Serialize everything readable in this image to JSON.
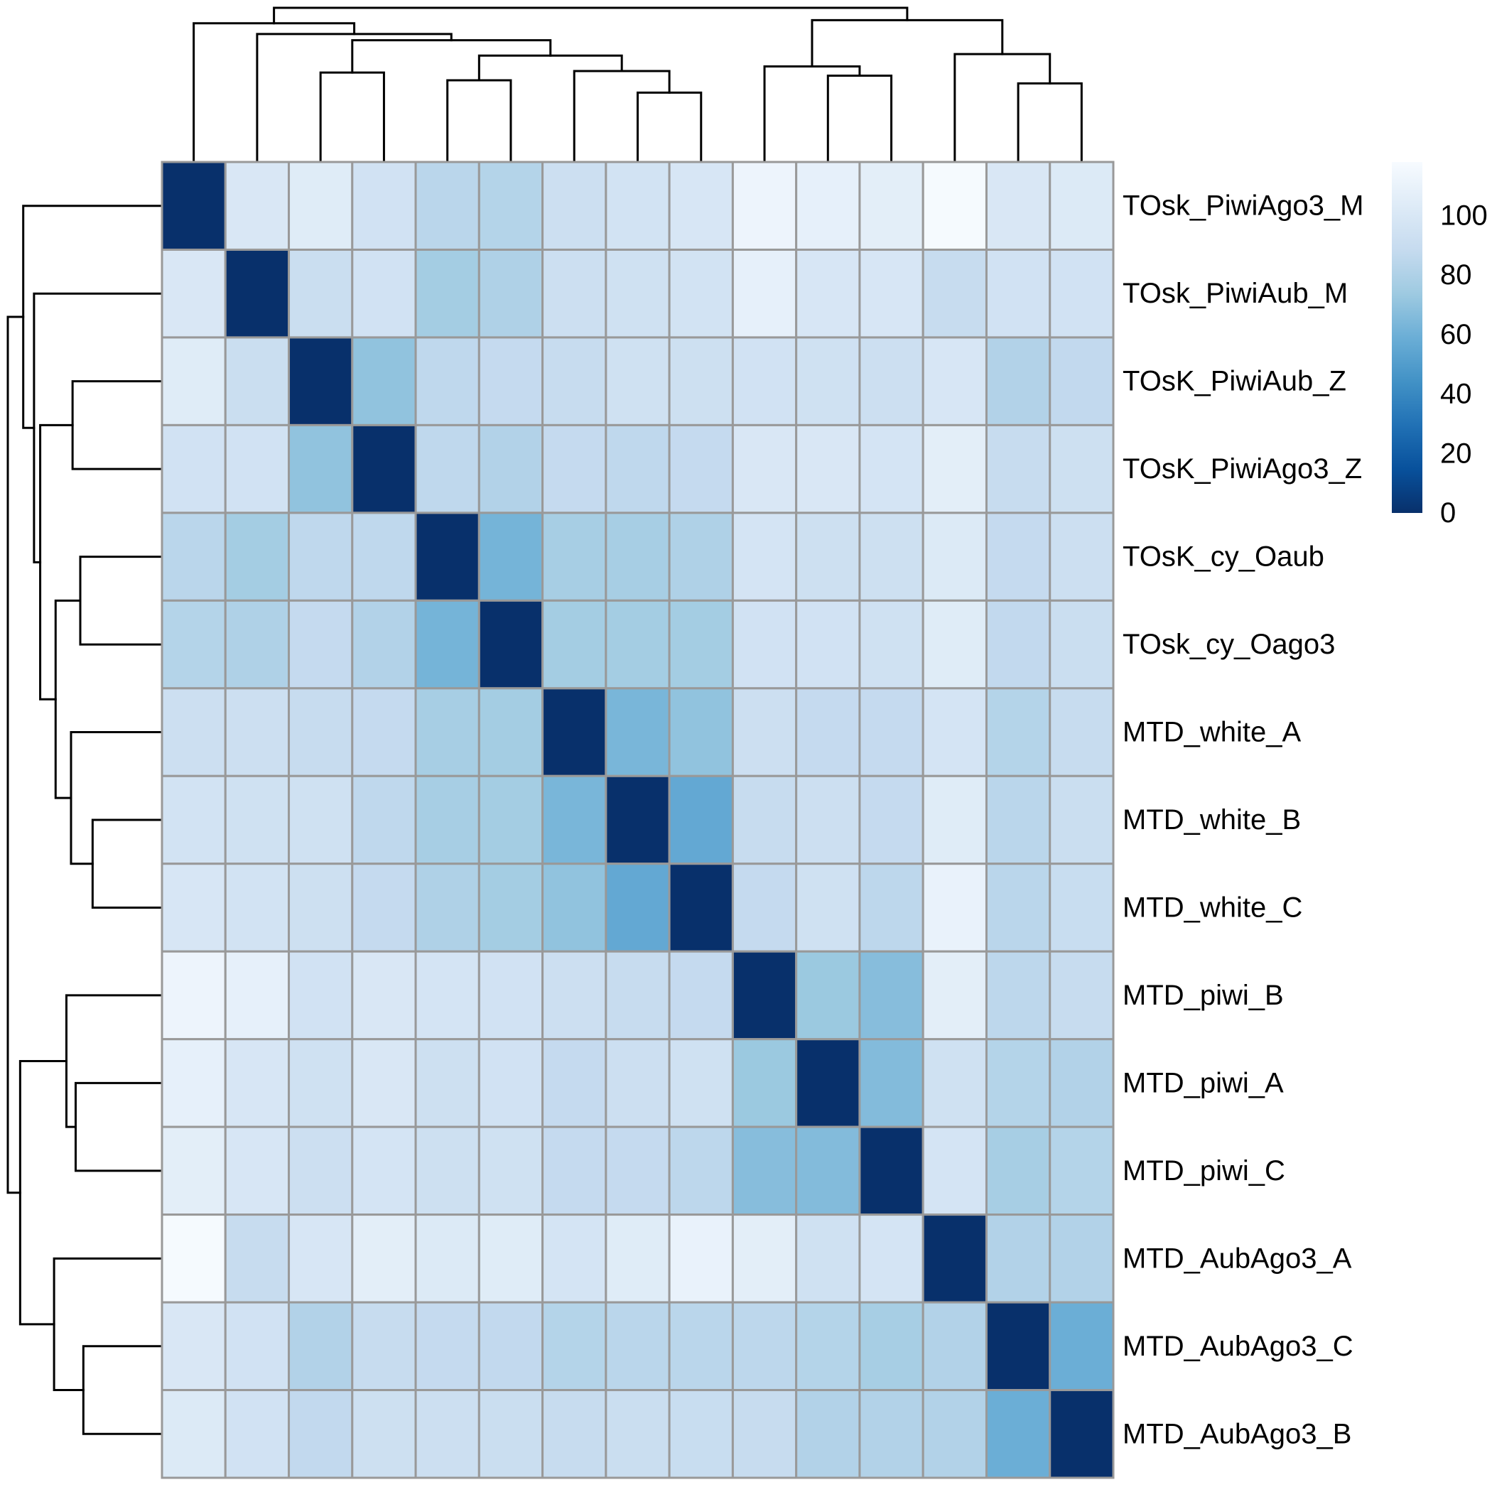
{
  "chart_data": {
    "type": "heatmap",
    "title": "",
    "labels": [
      "TOsk_PiwiAgo3_M",
      "TOsk_PiwiAub_M",
      "TOsK_PiwiAub_Z",
      "TOsK_PiwiAgo3_Z",
      "TOsK_cy_Oaub",
      "TOsk_cy_Oago3",
      "MTD_white_A",
      "MTD_white_B",
      "MTD_white_C",
      "MTD_piwi_B",
      "MTD_piwi_A",
      "MTD_piwi_C",
      "MTD_AubAgo3_A",
      "MTD_AubAgo3_C",
      "MTD_AubAgo3_B"
    ],
    "values": [
      [
        0,
        100,
        104,
        95,
        84,
        82,
        92,
        96,
        99,
        112,
        108,
        106,
        117,
        100,
        102
      ],
      [
        100,
        0,
        91,
        95,
        76,
        80,
        92,
        94,
        96,
        108,
        99,
        99,
        89,
        95,
        95
      ],
      [
        104,
        91,
        0,
        70,
        86,
        88,
        89,
        94,
        93,
        95,
        94,
        92,
        99,
        81,
        87
      ],
      [
        95,
        95,
        70,
        0,
        86,
        81,
        88,
        86,
        88,
        100,
        100,
        97,
        106,
        89,
        93
      ],
      [
        84,
        76,
        86,
        86,
        0,
        62,
        77,
        77,
        80,
        97,
        93,
        93,
        102,
        88,
        92
      ],
      [
        82,
        80,
        88,
        81,
        62,
        0,
        76,
        76,
        76,
        95,
        95,
        94,
        104,
        87,
        91
      ],
      [
        92,
        92,
        89,
        88,
        77,
        76,
        0,
        63,
        70,
        92,
        88,
        88,
        97,
        82,
        89
      ],
      [
        96,
        94,
        94,
        86,
        77,
        76,
        63,
        0,
        56,
        89,
        92,
        88,
        104,
        84,
        91
      ],
      [
        99,
        96,
        93,
        88,
        80,
        76,
        70,
        56,
        0,
        88,
        94,
        85,
        110,
        84,
        90
      ],
      [
        112,
        108,
        95,
        100,
        97,
        95,
        92,
        89,
        88,
        0,
        73,
        67,
        106,
        85,
        89
      ],
      [
        108,
        99,
        94,
        100,
        93,
        95,
        88,
        92,
        94,
        73,
        0,
        66,
        94,
        82,
        81
      ],
      [
        106,
        99,
        92,
        97,
        93,
        94,
        88,
        88,
        85,
        67,
        66,
        0,
        97,
        77,
        82
      ],
      [
        117,
        89,
        99,
        106,
        102,
        104,
        97,
        104,
        110,
        106,
        94,
        97,
        0,
        81,
        81
      ],
      [
        100,
        95,
        81,
        89,
        88,
        87,
        82,
        84,
        84,
        85,
        82,
        77,
        81,
        0,
        59
      ],
      [
        102,
        95,
        87,
        93,
        92,
        91,
        89,
        91,
        90,
        89,
        81,
        81,
        81,
        59,
        0
      ]
    ],
    "color_scale": {
      "palette": "Blues (reversed)",
      "min": 0,
      "max": 118,
      "stops": [
        "#08306B",
        "#08519C",
        "#2171B5",
        "#4292C6",
        "#6BAED6",
        "#9ECAE1",
        "#C6DBEF",
        "#DEEBF7",
        "#F7FBFF"
      ]
    },
    "legend": {
      "ticks": [
        "0",
        "20",
        "40",
        "60",
        "80",
        "100"
      ],
      "tick_values": [
        0,
        20,
        40,
        60,
        80,
        100
      ],
      "placement": "top-right"
    },
    "dendrogram": {
      "note": "same clustering for rows (left) and columns (top); heights are relative linkage distances (root = 1.0)",
      "merges": [
        {
          "left": [
            13
          ],
          "right": [
            14
          ],
          "height": 0.51
        },
        {
          "left": [
            12
          ],
          "right": [
            13,
            14
          ],
          "height": 0.7
        },
        {
          "left": [
            10
          ],
          "right": [
            11
          ],
          "height": 0.56
        },
        {
          "left": [
            9
          ],
          "right": [
            10,
            11
          ],
          "height": 0.62
        },
        {
          "left": [
            9,
            10,
            11
          ],
          "right": [
            12,
            13,
            14
          ],
          "height": 0.92
        },
        {
          "left": [
            7
          ],
          "right": [
            8
          ],
          "height": 0.45
        },
        {
          "left": [
            6
          ],
          "right": [
            7,
            8
          ],
          "height": 0.59
        },
        {
          "left": [
            4
          ],
          "right": [
            5
          ],
          "height": 0.53
        },
        {
          "left": [
            4,
            5
          ],
          "right": [
            6,
            7,
            8
          ],
          "height": 0.69
        },
        {
          "left": [
            2
          ],
          "right": [
            3
          ],
          "height": 0.58
        },
        {
          "left": [
            2,
            3
          ],
          "right": [
            4,
            5,
            6,
            7,
            8
          ],
          "height": 0.79
        },
        {
          "left": [
            1
          ],
          "right": [
            2,
            3,
            4,
            5,
            6,
            7,
            8
          ],
          "height": 0.83
        },
        {
          "left": [
            0
          ],
          "right": [
            1,
            2,
            3,
            4,
            5,
            6,
            7,
            8
          ],
          "height": 0.9
        },
        {
          "left": [
            0,
            1,
            2,
            3,
            4,
            5,
            6,
            7,
            8
          ],
          "right": [
            9,
            10,
            11,
            12,
            13,
            14
          ],
          "height": 1.0
        }
      ]
    },
    "cell_border_color": "#999999",
    "grid": true
  }
}
